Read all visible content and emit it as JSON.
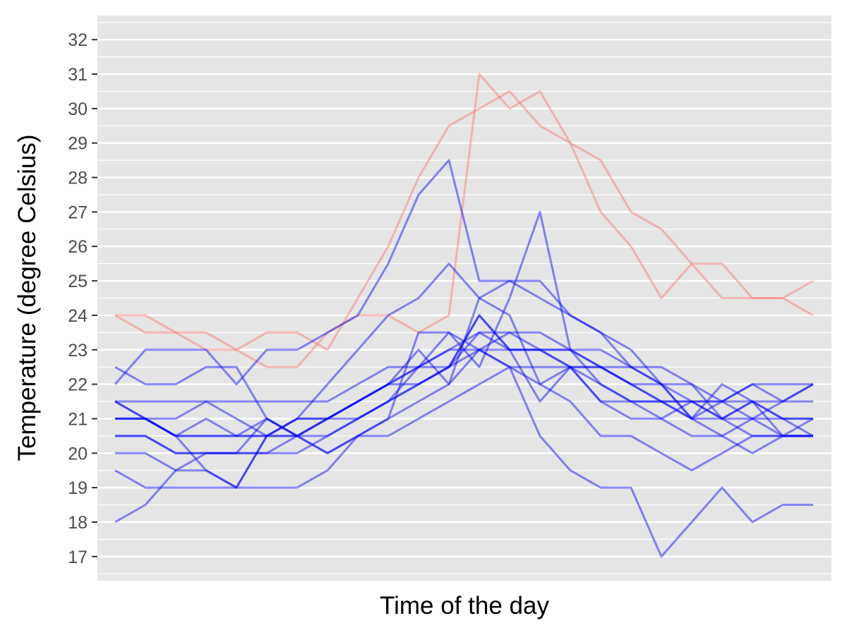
{
  "chart_data": {
    "type": "line",
    "xlabel": "Time of the day",
    "ylabel": "Temperature (degree Celsius)",
    "ylim": [
      16.3,
      32.7
    ],
    "yticks": [
      17,
      18,
      19,
      20,
      21,
      22,
      23,
      24,
      25,
      26,
      27,
      28,
      29,
      30,
      31,
      32
    ],
    "x_tick_labels": [],
    "x": [
      1,
      2,
      3,
      4,
      5,
      6,
      7,
      8,
      9,
      10,
      11,
      12,
      13,
      14,
      15,
      16,
      17,
      18,
      19,
      20,
      21,
      22,
      23,
      24
    ],
    "grid": true,
    "legend": "none",
    "colors": {
      "hot": "#f8766d",
      "normal": "#0000ff",
      "panel": "#e5e5e5",
      "grid": "#ffffff"
    },
    "series": [
      {
        "group": "hot",
        "values": [
          24,
          24,
          23.5,
          23.5,
          23,
          22.5,
          22.5,
          23.5,
          24,
          24,
          23.5,
          24,
          31,
          30,
          30.5,
          29,
          28.5,
          27,
          26.5,
          25.5,
          25.5,
          24.5,
          24.5,
          25
        ]
      },
      {
        "group": "hot",
        "values": [
          24,
          23.5,
          23.5,
          23,
          23,
          23.5,
          23.5,
          23,
          24.5,
          26,
          28,
          29.5,
          30,
          30.5,
          29.5,
          29,
          27,
          26,
          24.5,
          25.5,
          24.5,
          24.5,
          24.5,
          24
        ]
      },
      {
        "group": "normal",
        "values": [
          22,
          23,
          23,
          23,
          22,
          23,
          23,
          23.5,
          24,
          25.5,
          27.5,
          28.5,
          25,
          25,
          25,
          24,
          23.5,
          23,
          22,
          21,
          22,
          21.5,
          20.5,
          20.5
        ]
      },
      {
        "group": "normal",
        "values": [
          22.5,
          22,
          22,
          22.5,
          22.5,
          21,
          20.5,
          20,
          20.5,
          21,
          23.5,
          23.5,
          22.5,
          24.5,
          27,
          23,
          22.5,
          22,
          22,
          21.5,
          21,
          21.5,
          21,
          20.5
        ]
      },
      {
        "group": "normal",
        "values": [
          20,
          20,
          19.5,
          19.5,
          19,
          20.5,
          21,
          22,
          23,
          24,
          24.5,
          25.5,
          24.5,
          25,
          24.5,
          24,
          23.5,
          22.5,
          22,
          21,
          21.5,
          22,
          21.5,
          22
        ]
      },
      {
        "group": "normal",
        "values": [
          21.5,
          21,
          20.5,
          19.5,
          19,
          20.5,
          21,
          21,
          21.5,
          22,
          23,
          22,
          24.5,
          24,
          22,
          22.5,
          21.5,
          21,
          21,
          21.5,
          21.5,
          21.5,
          21.5,
          22
        ]
      },
      {
        "group": "normal",
        "values": [
          21,
          21,
          20.5,
          21,
          20.5,
          20.5,
          20.5,
          21,
          21.5,
          22,
          22,
          22.5,
          24,
          23,
          23,
          23,
          23,
          22.5,
          22.5,
          22,
          21,
          21.5,
          21,
          21
        ]
      },
      {
        "group": "normal",
        "values": [
          20.5,
          20.5,
          20,
          20,
          20,
          20,
          20,
          20.5,
          21,
          21.5,
          22,
          22.5,
          23,
          22.5,
          22.5,
          22.5,
          22.5,
          22,
          21.5,
          21,
          21,
          20.5,
          20.5,
          21
        ]
      },
      {
        "group": "normal",
        "values": [
          21,
          21,
          20.5,
          20.5,
          20.5,
          21,
          20.5,
          20,
          20.5,
          21,
          21.5,
          22,
          23,
          23.5,
          23,
          22.5,
          21.5,
          21.5,
          21.5,
          21,
          20.5,
          21,
          21.5,
          21.5
        ]
      },
      {
        "group": "normal",
        "values": [
          18,
          18.5,
          19.5,
          20,
          20,
          20,
          20.5,
          21,
          21.5,
          22,
          22.5,
          22.5,
          24,
          23,
          21.5,
          22.5,
          22,
          21.5,
          21,
          20.5,
          20.5,
          20,
          20.5,
          20.5
        ]
      },
      {
        "group": "normal",
        "values": [
          19.5,
          19,
          19,
          19,
          19,
          19,
          19,
          19.5,
          20.5,
          20.5,
          21,
          21.5,
          22,
          22.5,
          22,
          21.5,
          20.5,
          20.5,
          20,
          19.5,
          20,
          20.5,
          20.5,
          20.5
        ]
      },
      {
        "group": "normal",
        "values": [
          20.5,
          20.5,
          20,
          20,
          20,
          21,
          20.5,
          20.5,
          21,
          21.5,
          22.5,
          23,
          23,
          22.5,
          20.5,
          19.5,
          19,
          19,
          17,
          18,
          19,
          18,
          18.5,
          18.5
        ]
      },
      {
        "group": "normal",
        "values": [
          21.5,
          21.5,
          21.5,
          21.5,
          21.5,
          21.5,
          21.5,
          21.5,
          22,
          22.5,
          22.5,
          23,
          23.5,
          23.5,
          23.5,
          23,
          22,
          21.5,
          21.5,
          21.5,
          21,
          21,
          21,
          21
        ]
      },
      {
        "group": "normal",
        "values": [
          21,
          21,
          20.5,
          20.5,
          20.5,
          20.5,
          20.5,
          21,
          21.5,
          22,
          22.5,
          23.5,
          23,
          23,
          23,
          22.5,
          22.5,
          22,
          21.5,
          21.5,
          21.5,
          22,
          22,
          22
        ]
      },
      {
        "group": "normal",
        "values": [
          21.5,
          21,
          21,
          21.5,
          21,
          20.5,
          21,
          21,
          21,
          21.5,
          22,
          22.5,
          23.5,
          23,
          23,
          23,
          22.5,
          22.5,
          22,
          22,
          21.5,
          21,
          20.5,
          20.5
        ]
      }
    ]
  }
}
